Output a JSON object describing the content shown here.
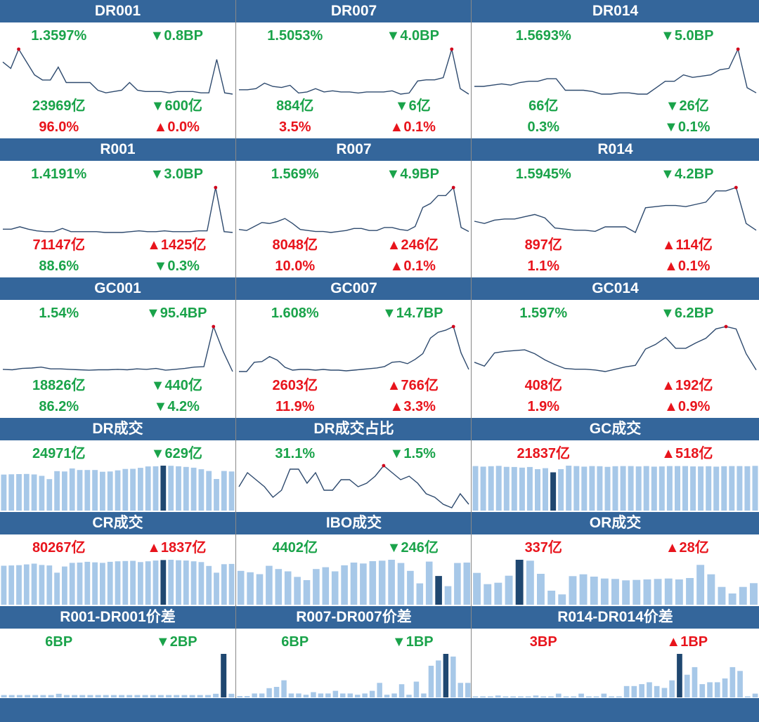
{
  "colors": {
    "header": "#34669b",
    "up": "#e8141c",
    "down": "#1aa34a",
    "line": "#2e4a6e",
    "marker": "#d0021b",
    "bar": "#a7c8e8",
    "bar_highlight": "#1f4770"
  },
  "panels": [
    {
      "title": "DR001",
      "rate": "1.3597%",
      "rate_color": "g",
      "rate_chg": "▼0.8BP",
      "rate_chg_color": "g",
      "vol": "23969亿",
      "vol_color": "g",
      "vol_chg": "▼600亿",
      "vol_chg_color": "g",
      "pct": "96.0%",
      "pct_color": "r",
      "pct_chg": "▲0.0%",
      "pct_chg_color": "r"
    },
    {
      "title": "DR007",
      "rate": "1.5053%",
      "rate_color": "g",
      "rate_chg": "▼4.0BP",
      "rate_chg_color": "g",
      "vol": "884亿",
      "vol_color": "g",
      "vol_chg": "▼6亿",
      "vol_chg_color": "g",
      "pct": "3.5%",
      "pct_color": "r",
      "pct_chg": "▲0.1%",
      "pct_chg_color": "r"
    },
    {
      "title": "DR014",
      "rate": "1.5693%",
      "rate_color": "g",
      "rate_chg": "▼5.0BP",
      "rate_chg_color": "g",
      "vol": "66亿",
      "vol_color": "g",
      "vol_chg": "▼26亿",
      "vol_chg_color": "g",
      "pct": "0.3%",
      "pct_color": "g",
      "pct_chg": "▼0.1%",
      "pct_chg_color": "g"
    },
    {
      "title": "R001",
      "rate": "1.4191%",
      "rate_color": "g",
      "rate_chg": "▼3.0BP",
      "rate_chg_color": "g",
      "vol": "71147亿",
      "vol_color": "r",
      "vol_chg": "▲1425亿",
      "vol_chg_color": "r",
      "pct": "88.6%",
      "pct_color": "g",
      "pct_chg": "▼0.3%",
      "pct_chg_color": "g"
    },
    {
      "title": "R007",
      "rate": "1.569%",
      "rate_color": "g",
      "rate_chg": "▼4.9BP",
      "rate_chg_color": "g",
      "vol": "8048亿",
      "vol_color": "r",
      "vol_chg": "▲246亿",
      "vol_chg_color": "r",
      "pct": "10.0%",
      "pct_color": "r",
      "pct_chg": "▲0.1%",
      "pct_chg_color": "r"
    },
    {
      "title": "R014",
      "rate": "1.5945%",
      "rate_color": "g",
      "rate_chg": "▼4.2BP",
      "rate_chg_color": "g",
      "vol": "897亿",
      "vol_color": "r",
      "vol_chg": "▲114亿",
      "vol_chg_color": "r",
      "pct": "1.1%",
      "pct_color": "r",
      "pct_chg": "▲0.1%",
      "pct_chg_color": "r"
    },
    {
      "title": "GC001",
      "rate": "1.54%",
      "rate_color": "g",
      "rate_chg": "▼95.4BP",
      "rate_chg_color": "g",
      "vol": "18826亿",
      "vol_color": "g",
      "vol_chg": "▼440亿",
      "vol_chg_color": "g",
      "pct": "86.2%",
      "pct_color": "g",
      "pct_chg": "▼4.2%",
      "pct_chg_color": "g"
    },
    {
      "title": "GC007",
      "rate": "1.608%",
      "rate_color": "g",
      "rate_chg": "▼14.7BP",
      "rate_chg_color": "g",
      "vol": "2603亿",
      "vol_color": "r",
      "vol_chg": "▲766亿",
      "vol_chg_color": "r",
      "pct": "11.9%",
      "pct_color": "r",
      "pct_chg": "▲3.3%",
      "pct_chg_color": "r"
    },
    {
      "title": "GC014",
      "rate": "1.597%",
      "rate_color": "g",
      "rate_chg": "▼6.2BP",
      "rate_chg_color": "g",
      "vol": "408亿",
      "vol_color": "r",
      "vol_chg": "▲192亿",
      "vol_chg_color": "r",
      "pct": "1.9%",
      "pct_color": "r",
      "pct_chg": "▲0.9%",
      "pct_chg_color": "r"
    },
    {
      "title": "DR成交",
      "val": "24971亿",
      "val_color": "g",
      "chg": "▼629亿",
      "chg_color": "g"
    },
    {
      "title": "DR成交占比",
      "val": "31.1%",
      "val_color": "g",
      "chg": "▼1.5%",
      "chg_color": "g"
    },
    {
      "title": "GC成交",
      "val": "21837亿",
      "val_color": "r",
      "chg": "▲518亿",
      "chg_color": "r"
    },
    {
      "title": "CR成交",
      "val": "80267亿",
      "val_color": "r",
      "chg": "▲1837亿",
      "chg_color": "r"
    },
    {
      "title": "IBO成交",
      "val": "4402亿",
      "val_color": "g",
      "chg": "▼246亿",
      "chg_color": "g"
    },
    {
      "title": "OR成交",
      "val": "337亿",
      "val_color": "r",
      "chg": "▲28亿",
      "chg_color": "r"
    },
    {
      "title": "R001-DR001价差",
      "val": "6BP",
      "val_color": "g",
      "chg": "▼2BP",
      "chg_color": "g"
    },
    {
      "title": "R007-DR007价差",
      "val": "6BP",
      "val_color": "g",
      "chg": "▼1BP",
      "chg_color": "g"
    },
    {
      "title": "R014-DR014价差",
      "val": "3BP",
      "val_color": "r",
      "chg": "▲1BP",
      "chg_color": "r"
    }
  ],
  "chart_data": [
    {
      "type": "line",
      "series": [
        {
          "values": [
            1.6,
            1.55,
            1.7,
            1.6,
            1.5,
            1.46,
            1.46,
            1.56,
            1.44,
            1.44,
            1.44,
            1.44,
            1.38,
            1.36,
            1.37,
            1.38,
            1.44,
            1.38,
            1.37,
            1.37,
            1.37,
            1.36,
            1.37,
            1.37,
            1.37,
            1.36,
            1.36,
            1.62,
            1.36,
            1.35
          ]
        }
      ],
      "max_index": 2
    },
    {
      "type": "line",
      "series": [
        {
          "values": [
            1.55,
            1.55,
            1.56,
            1.61,
            1.58,
            1.57,
            1.59,
            1.52,
            1.53,
            1.56,
            1.53,
            1.54,
            1.53,
            1.53,
            1.52,
            1.53,
            1.53,
            1.53,
            1.54,
            1.51,
            1.52,
            1.63,
            1.64,
            1.64,
            1.66,
            1.92,
            1.56,
            1.51
          ]
        }
      ],
      "max_index": 25
    },
    {
      "type": "line",
      "series": [
        {
          "values": [
            1.62,
            1.62,
            1.63,
            1.64,
            1.63,
            1.65,
            1.66,
            1.66,
            1.68,
            1.68,
            1.59,
            1.59,
            1.59,
            1.58,
            1.56,
            1.56,
            1.57,
            1.57,
            1.56,
            1.56,
            1.61,
            1.66,
            1.66,
            1.71,
            1.69,
            1.7,
            1.71,
            1.75,
            1.76,
            1.91,
            1.61,
            1.57
          ]
        }
      ],
      "max_index": 29
    },
    {
      "type": "line",
      "series": [
        {
          "values": [
            1.49,
            1.49,
            1.52,
            1.49,
            1.47,
            1.46,
            1.46,
            1.5,
            1.46,
            1.46,
            1.46,
            1.46,
            1.45,
            1.45,
            1.45,
            1.46,
            1.47,
            1.46,
            1.46,
            1.47,
            1.46,
            1.46,
            1.46,
            1.47,
            1.47,
            2.0,
            1.46,
            1.45
          ]
        }
      ],
      "max_index": 25
    },
    {
      "type": "line",
      "series": [
        {
          "values": [
            1.6,
            1.59,
            1.63,
            1.67,
            1.66,
            1.68,
            1.71,
            1.66,
            1.6,
            1.59,
            1.58,
            1.58,
            1.57,
            1.58,
            1.59,
            1.61,
            1.61,
            1.59,
            1.59,
            1.62,
            1.62,
            1.6,
            1.59,
            1.63,
            1.82,
            1.86,
            1.94,
            1.94,
            2.02,
            1.62,
            1.58
          ]
        }
      ],
      "max_index": 28
    },
    {
      "type": "line",
      "series": [
        {
          "values": [
            1.72,
            1.7,
            1.73,
            1.74,
            1.74,
            1.76,
            1.78,
            1.75,
            1.66,
            1.65,
            1.64,
            1.64,
            1.63,
            1.67,
            1.67,
            1.67,
            1.62,
            1.84,
            1.85,
            1.86,
            1.86,
            1.85,
            1.87,
            1.89,
            1.99,
            1.99,
            2.02,
            1.7,
            1.64
          ]
        }
      ],
      "max_index": 26
    },
    {
      "type": "line",
      "series": [
        {
          "values": [
            1.59,
            1.58,
            1.61,
            1.62,
            1.64,
            1.6,
            1.6,
            1.59,
            1.58,
            1.57,
            1.58,
            1.58,
            1.59,
            1.58,
            1.6,
            1.59,
            1.61,
            1.57,
            1.59,
            1.61,
            1.64,
            1.65,
            2.56,
            2.0,
            1.54
          ]
        }
      ],
      "max_index": 22
    },
    {
      "type": "line",
      "series": [
        {
          "values": [
            1.58,
            1.58,
            1.71,
            1.72,
            1.79,
            1.74,
            1.64,
            1.6,
            1.61,
            1.61,
            1.6,
            1.61,
            1.6,
            1.6,
            1.59,
            1.6,
            1.61,
            1.62,
            1.63,
            1.65,
            1.71,
            1.72,
            1.69,
            1.75,
            1.83,
            2.05,
            2.13,
            2.16,
            2.21,
            1.84,
            1.61
          ]
        }
      ],
      "max_index": 28
    },
    {
      "type": "line",
      "series": [
        {
          "values": [
            1.68,
            1.63,
            1.8,
            1.82,
            1.83,
            1.84,
            1.79,
            1.71,
            1.65,
            1.6,
            1.59,
            1.59,
            1.58,
            1.56,
            1.59,
            1.62,
            1.64,
            1.85,
            1.91,
            2.0,
            1.86,
            1.86,
            1.93,
            1.99,
            2.11,
            2.14,
            2.11,
            1.79,
            1.58
          ]
        }
      ],
      "max_index": 25
    },
    {
      "type": "bar",
      "values": [
        23000,
        23200,
        23300,
        23400,
        23100,
        22200,
        20100,
        25200,
        25000,
        26900,
        25900,
        25900,
        25900,
        24800,
        25000,
        25700,
        26600,
        26700,
        27300,
        28200,
        28300,
        28700,
        28600,
        28300,
        27900,
        27400,
        26400,
        25300,
        20200,
        25300,
        25000
      ],
      "highlight_index": 21
    },
    {
      "type": "line",
      "series": [
        {
          "values": [
            27,
            31,
            29,
            27,
            24,
            26,
            32,
            32,
            28,
            31,
            26,
            26,
            29,
            29,
            27,
            28,
            30,
            33,
            31,
            29,
            30,
            28,
            25,
            24,
            22,
            21,
            25,
            22
          ]
        }
      ],
      "max_index": 17
    },
    {
      "type": "bar",
      "values": [
        22800,
        22500,
        22700,
        22900,
        22400,
        22300,
        22000,
        22300,
        21200,
        21700,
        19600,
        21200,
        23000,
        22800,
        22500,
        22800,
        22700,
        22400,
        22700,
        22800,
        22800,
        22600,
        22800,
        22500,
        22600,
        22800,
        22800,
        22800,
        22600,
        22600,
        22700,
        22500,
        22700,
        22800,
        22800,
        22700,
        22900
      ],
      "highlight_index": 10
    },
    {
      "type": "bar",
      "values": [
        75500,
        76000,
        76500,
        78000,
        79500,
        77000,
        76000,
        62000,
        74000,
        81000,
        81500,
        83000,
        82000,
        81000,
        83000,
        84000,
        84500,
        85000,
        82500,
        84000,
        85500,
        86500,
        87000,
        86000,
        85500,
        84000,
        82500,
        75000,
        62000,
        78500,
        79000
      ],
      "highlight_index": 21
    },
    {
      "type": "bar",
      "values": [
        3650,
        3500,
        3300,
        4200,
        3850,
        3600,
        3000,
        2650,
        3850,
        4050,
        3600,
        4250,
        4550,
        4450,
        4700,
        4750,
        4850,
        4500,
        3650,
        2300,
        4650,
        3100,
        2000,
        4500,
        4550
      ],
      "highlight_index": 21
    },
    {
      "type": "bar",
      "values": [
        340,
        220,
        235,
        310,
        480,
        470,
        330,
        150,
        110,
        305,
        325,
        300,
        280,
        275,
        260,
        265,
        270,
        275,
        280,
        270,
        285,
        425,
        325,
        190,
        120,
        190,
        230
      ],
      "highlight_index": 4
    },
    {
      "type": "bar",
      "values": [
        2,
        2,
        2,
        2,
        2,
        2,
        2,
        3,
        2,
        2,
        2,
        2,
        2,
        2,
        2,
        2,
        2,
        2,
        2,
        2,
        2,
        2,
        2,
        2,
        2,
        2,
        2,
        3,
        36,
        3
      ],
      "highlight_index": 28
    },
    {
      "type": "bar",
      "values": [
        1,
        1,
        3,
        3,
        7,
        8,
        13,
        3,
        3,
        2,
        4,
        3,
        3,
        5,
        3,
        3,
        2,
        3,
        5,
        11,
        2,
        3,
        10,
        2,
        12,
        3,
        24,
        28,
        33,
        31,
        11,
        11
      ],
      "highlight_index": 28
    },
    {
      "type": "bar",
      "values": [
        0,
        0,
        0,
        1,
        0,
        0,
        0,
        0,
        1,
        0,
        0,
        2,
        0,
        0,
        2,
        0,
        0,
        2,
        0,
        0,
        6,
        6,
        7,
        8,
        6,
        5,
        9,
        23,
        12,
        16,
        7,
        8,
        8,
        10,
        16,
        14,
        0,
        2
      ],
      "highlight_index": 27
    }
  ]
}
